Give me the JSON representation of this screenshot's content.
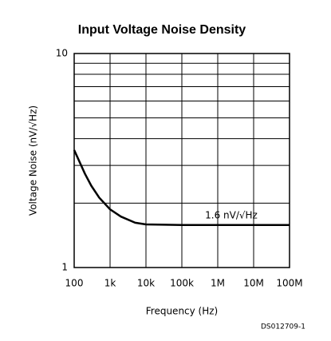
{
  "chart_data": {
    "type": "line",
    "title": "Input Voltage Noise Density",
    "x_label": "Frequency (Hz)",
    "y_label": "Voltage Noise (nV/√Hz)",
    "annotation": "1.6 nV/√Hz",
    "note": "DS012709-1",
    "log_x": true,
    "log_y": true,
    "grid": true,
    "x": [
      100,
      200,
      300,
      500,
      1000,
      2000,
      5000,
      10000,
      100000,
      1000000,
      10000000,
      100000000
    ],
    "series": [
      {
        "name": "Voltage Noise",
        "color": "#000000",
        "values": [
          3.54,
          2.74,
          2.41,
          2.12,
          1.87,
          1.73,
          1.62,
          1.59,
          1.58,
          1.58,
          1.58,
          1.58
        ]
      }
    ],
    "xlim": [
      100,
      100000000
    ],
    "xticks": [
      100,
      {
        "value": 1000,
        "label": "1k"
      },
      {
        "value": 10000,
        "label": "10k"
      },
      {
        "value": 100000,
        "label": "100k"
      },
      {
        "value": 1000000,
        "label": "1M"
      },
      {
        "value": 10000000,
        "label": "10M"
      },
      {
        "value": 100000000,
        "label": "100M"
      }
    ],
    "ylim": [
      1,
      10
    ],
    "yticks": [
      1,
      10
    ],
    "y_minor_ticks": [
      2,
      3,
      4,
      5,
      6,
      7,
      8,
      9
    ]
  }
}
